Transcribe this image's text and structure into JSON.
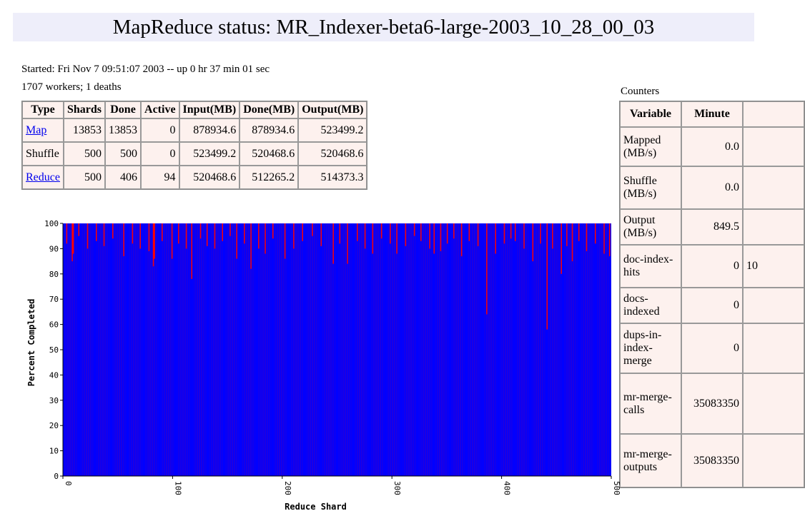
{
  "header": {
    "title": "MapReduce status: MR_Indexer-beta6-large-2003_10_28_00_03"
  },
  "started": "Started: Fri Nov 7 09:51:07 2003 -- up 0 hr 37 min 01 sec",
  "workers": "1707 workers; 1 deaths",
  "table": {
    "headers": [
      "Type",
      "Shards",
      "Done",
      "Active",
      "Input(MB)",
      "Done(MB)",
      "Output(MB)"
    ],
    "rows": [
      [
        "Map",
        "13853",
        "13853",
        "0",
        "878934.6",
        "878934.6",
        "523499.2"
      ],
      [
        "Shuffle",
        "500",
        "500",
        "0",
        "523499.2",
        "520468.6",
        "520468.6"
      ],
      [
        "Reduce",
        "500",
        "406",
        "94",
        "520468.6",
        "512265.2",
        "514373.3"
      ]
    ],
    "links": [
      "Map",
      "Reduce"
    ]
  },
  "counters": {
    "label": "Counters",
    "headers": [
      "Variable",
      "Minute"
    ],
    "rows": [
      [
        "Mapped (MB/s)",
        "0.0",
        ""
      ],
      [
        "Shuffle (MB/s)",
        "0.0",
        ""
      ],
      [
        "Output (MB/s)",
        "849.5",
        ""
      ],
      [
        "doc-index-hits",
        "0",
        "10"
      ],
      [
        "docs-indexed",
        "0",
        ""
      ],
      [
        "dups-in-index-merge",
        "0",
        ""
      ],
      [
        "mr-merge-calls",
        "35083350",
        ""
      ],
      [
        "mr-merge-outputs",
        "35083350",
        ""
      ]
    ]
  },
  "chart_data": {
    "type": "bar",
    "x_label": "Reduce Shard",
    "y_label": "Percent Completed",
    "color": "#0000ff",
    "remaining_color": "#ff0000",
    "xlim": [
      0,
      500
    ],
    "xticks": [
      0,
      100,
      200,
      300,
      400,
      500
    ],
    "ylim": [
      0,
      100
    ],
    "yticks": [
      0,
      10,
      20,
      30,
      40,
      50,
      60,
      70,
      80,
      90,
      100
    ],
    "values": [
      100,
      100,
      100,
      92,
      100,
      100,
      100,
      100,
      85,
      88,
      100,
      100,
      100,
      100,
      95,
      100,
      100,
      100,
      100,
      100,
      100,
      100,
      90,
      100,
      100,
      100,
      100,
      100,
      100,
      100,
      93,
      100,
      100,
      100,
      100,
      100,
      100,
      91,
      100,
      100,
      100,
      100,
      100,
      100,
      100,
      94,
      100,
      100,
      100,
      100,
      100,
      100,
      100,
      100,
      100,
      87,
      100,
      100,
      100,
      100,
      100,
      100,
      100,
      92,
      100,
      100,
      100,
      100,
      100,
      100,
      90,
      100,
      100,
      100,
      100,
      100,
      100,
      100,
      89,
      100,
      100,
      100,
      83,
      86,
      100,
      100,
      100,
      100,
      100,
      100,
      93,
      100,
      100,
      100,
      100,
      100,
      100,
      100,
      100,
      86,
      100,
      100,
      100,
      100,
      100,
      92,
      100,
      100,
      100,
      100,
      100,
      100,
      90,
      100,
      100,
      100,
      100,
      78,
      100,
      100,
      100,
      100,
      100,
      100,
      100,
      94,
      100,
      100,
      100,
      100,
      100,
      91,
      100,
      100,
      100,
      100,
      100,
      100,
      90,
      100,
      100,
      100,
      100,
      100,
      100,
      93,
      100,
      100,
      100,
      100,
      100,
      100,
      95,
      100,
      100,
      100,
      100,
      100,
      86,
      100,
      100,
      100,
      100,
      100,
      100,
      92,
      100,
      100,
      100,
      100,
      100,
      82,
      100,
      100,
      100,
      100,
      100,
      100,
      90,
      100,
      100,
      100,
      100,
      100,
      88,
      100,
      100,
      100,
      100,
      100,
      100,
      94,
      100,
      100,
      100,
      100,
      100,
      100,
      100,
      100,
      100,
      100,
      86,
      100,
      100,
      100,
      100,
      100,
      100,
      100,
      90,
      100,
      100,
      100,
      100,
      100,
      100,
      100,
      93,
      100,
      100,
      100,
      100,
      100,
      100,
      100,
      100,
      95,
      100,
      100,
      100,
      100,
      100,
      100,
      100,
      91,
      100,
      100,
      100,
      100,
      100,
      100,
      100,
      100,
      100,
      100,
      84,
      100,
      100,
      100,
      100,
      100,
      92,
      100,
      100,
      100,
      100,
      100,
      100,
      84,
      100,
      100,
      100,
      100,
      100,
      100,
      100,
      100,
      93,
      100,
      100,
      100,
      100,
      100,
      100,
      90,
      100,
      100,
      100,
      100,
      100,
      100,
      88,
      100,
      100,
      100,
      100,
      100,
      100,
      100,
      94,
      100,
      100,
      100,
      100,
      100,
      100,
      100,
      92,
      100,
      100,
      100,
      100,
      100,
      88,
      100,
      100,
      100,
      100,
      100,
      100,
      100,
      91,
      100,
      100,
      100,
      100,
      100,
      100,
      100,
      95,
      100,
      100,
      100,
      100,
      100,
      93,
      100,
      100,
      100,
      100,
      100,
      100,
      100,
      90,
      100,
      100,
      100,
      88,
      100,
      100,
      100,
      100,
      100,
      89,
      100,
      100,
      100,
      100,
      100,
      92,
      100,
      100,
      100,
      100,
      100,
      94,
      100,
      100,
      100,
      100,
      100,
      100,
      87,
      100,
      100,
      100,
      100,
      100,
      100,
      93,
      100,
      100,
      100,
      100,
      100,
      100,
      100,
      91,
      100,
      100,
      100,
      100,
      100,
      100,
      100,
      64,
      100,
      100,
      100,
      100,
      100,
      100,
      100,
      88,
      100,
      100,
      100,
      100,
      100,
      100,
      100,
      92,
      100,
      100,
      100,
      100,
      100,
      94,
      100,
      100,
      100,
      93,
      100,
      100,
      100,
      100,
      100,
      100,
      100,
      90,
      100,
      100,
      100,
      100,
      100,
      100,
      100,
      85,
      100,
      100,
      100,
      100,
      100,
      100,
      92,
      100,
      100,
      100,
      100,
      100,
      58,
      100,
      100,
      100,
      100,
      90,
      100,
      100,
      100,
      100,
      100,
      100,
      100,
      80,
      100,
      100,
      100,
      100,
      91,
      100,
      100,
      100,
      100,
      85,
      100,
      100,
      100,
      100,
      100,
      93,
      100,
      100,
      100,
      100,
      100,
      100,
      89,
      100,
      100,
      100,
      100,
      100,
      100,
      100,
      92,
      100,
      100,
      100,
      100,
      100,
      100,
      100,
      88,
      100,
      100,
      100,
      100,
      87,
      100
    ]
  }
}
